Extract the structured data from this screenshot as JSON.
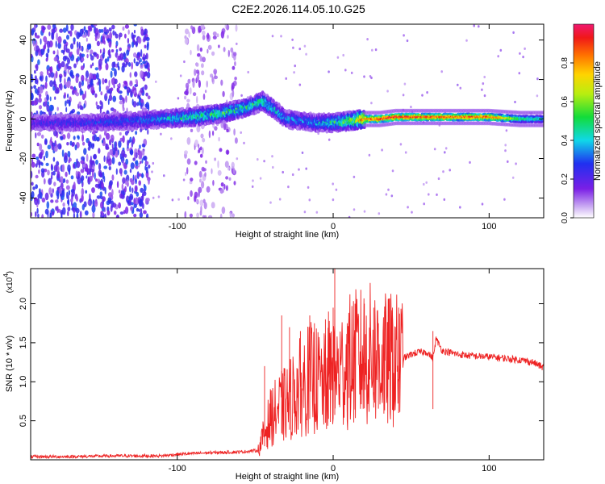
{
  "title": "C2E2.2026.114.05.10.G25",
  "chart_data": [
    {
      "type": "heatmap",
      "title": "C2E2.2026.114.05.10.G25",
      "xlabel": "Height of straight line (km)",
      "ylabel": "Frequency (Hz)",
      "xlim": [
        -194,
        135
      ],
      "ylim": [
        -50,
        48
      ],
      "x_ticks": [
        -100,
        0,
        100
      ],
      "y_ticks": [
        -40,
        -20,
        0,
        20,
        40
      ],
      "colorbar": {
        "label": "Normalized spectral amplitude",
        "range": [
          0.0,
          1.0
        ],
        "ticks": [
          0.0,
          0.2,
          0.4,
          0.6,
          0.8
        ],
        "tick_labels": [
          "0.0",
          "0.2",
          "0.4",
          "0.6",
          "0.8"
        ],
        "colormap": "rainbow (white-purple-blue-cyan-green-yellow-orange-red-magenta)"
      },
      "ridge": {
        "description": "frequency centroid of the main energy band vs height",
        "x": [
          -194,
          -160,
          -130,
          -110,
          -90,
          -70,
          -55,
          -45,
          -38,
          -30,
          -20,
          -10,
          0,
          10,
          20,
          30,
          40,
          60,
          80,
          100,
          120,
          135
        ],
        "freq": [
          -2,
          -2,
          -1,
          0,
          1,
          3,
          6,
          9,
          5,
          0,
          -1,
          -2,
          -2,
          -1,
          0,
          0,
          1,
          1,
          1,
          1,
          0,
          0
        ],
        "amplitude": [
          0.25,
          0.28,
          0.32,
          0.4,
          0.5,
          0.55,
          0.5,
          0.55,
          0.45,
          0.4,
          0.38,
          0.42,
          0.5,
          0.6,
          0.9,
          0.95,
          1.0,
          0.95,
          0.92,
          0.95,
          0.55,
          0.45
        ]
      },
      "noise_regions": [
        {
          "x_range": [
            -194,
            -118
          ],
          "amplitude": 0.25
        },
        {
          "x_range": [
            -95,
            -62
          ],
          "amplitude": 0.12
        }
      ]
    },
    {
      "type": "line",
      "title": "",
      "xlabel": "Height of straight line (km)",
      "ylabel": "SNR (10 * v/v)",
      "scale_label": "(x10",
      "scale_exponent": "4",
      "xlim": [
        -194,
        135
      ],
      "ylim": [
        0,
        2.45
      ],
      "x_ticks": [
        -100,
        0,
        100
      ],
      "y_ticks": [
        0.5,
        1.0,
        1.5,
        2.0
      ],
      "y_tick_labels": [
        "0.5",
        "1.0",
        "1.5",
        "2.0"
      ],
      "series": [
        {
          "name": "SNR",
          "color": "#ee2222",
          "x": [
            -194,
            -170,
            -140,
            -110,
            -100,
            -80,
            -60,
            -48,
            -44,
            -40,
            -35,
            -30,
            -25,
            -20,
            -15,
            -10,
            -5,
            0,
            2,
            5,
            10,
            15,
            20,
            25,
            30,
            35,
            40,
            42,
            45,
            50,
            55,
            60,
            64,
            66,
            70,
            80,
            90,
            100,
            110,
            120,
            128,
            135
          ],
          "values": [
            0.04,
            0.04,
            0.05,
            0.05,
            0.07,
            0.09,
            0.1,
            0.12,
            0.35,
            0.55,
            0.65,
            0.72,
            0.85,
            0.95,
            1.05,
            1.0,
            0.95,
            1.2,
            1.1,
            1.15,
            1.25,
            1.3,
            1.32,
            1.35,
            1.3,
            1.25,
            1.3,
            1.2,
            1.3,
            1.35,
            1.38,
            1.38,
            1.3,
            1.55,
            1.4,
            1.35,
            1.33,
            1.32,
            1.3,
            1.28,
            1.25,
            1.18
          ]
        }
      ],
      "spikes": {
        "x": [
          -44,
          -33,
          -28,
          -21,
          -15,
          -12,
          -5,
          -3,
          0,
          1,
          9,
          14,
          20,
          26,
          29,
          33,
          38,
          42,
          64
        ],
        "values": [
          1.2,
          1.85,
          1.7,
          1.65,
          1.85,
          1.75,
          1.8,
          1.9,
          1.95,
          2.45,
          1.75,
          2.0,
          2.0,
          1.95,
          1.75,
          1.9,
          1.95,
          1.95,
          1.65
        ]
      }
    }
  ]
}
